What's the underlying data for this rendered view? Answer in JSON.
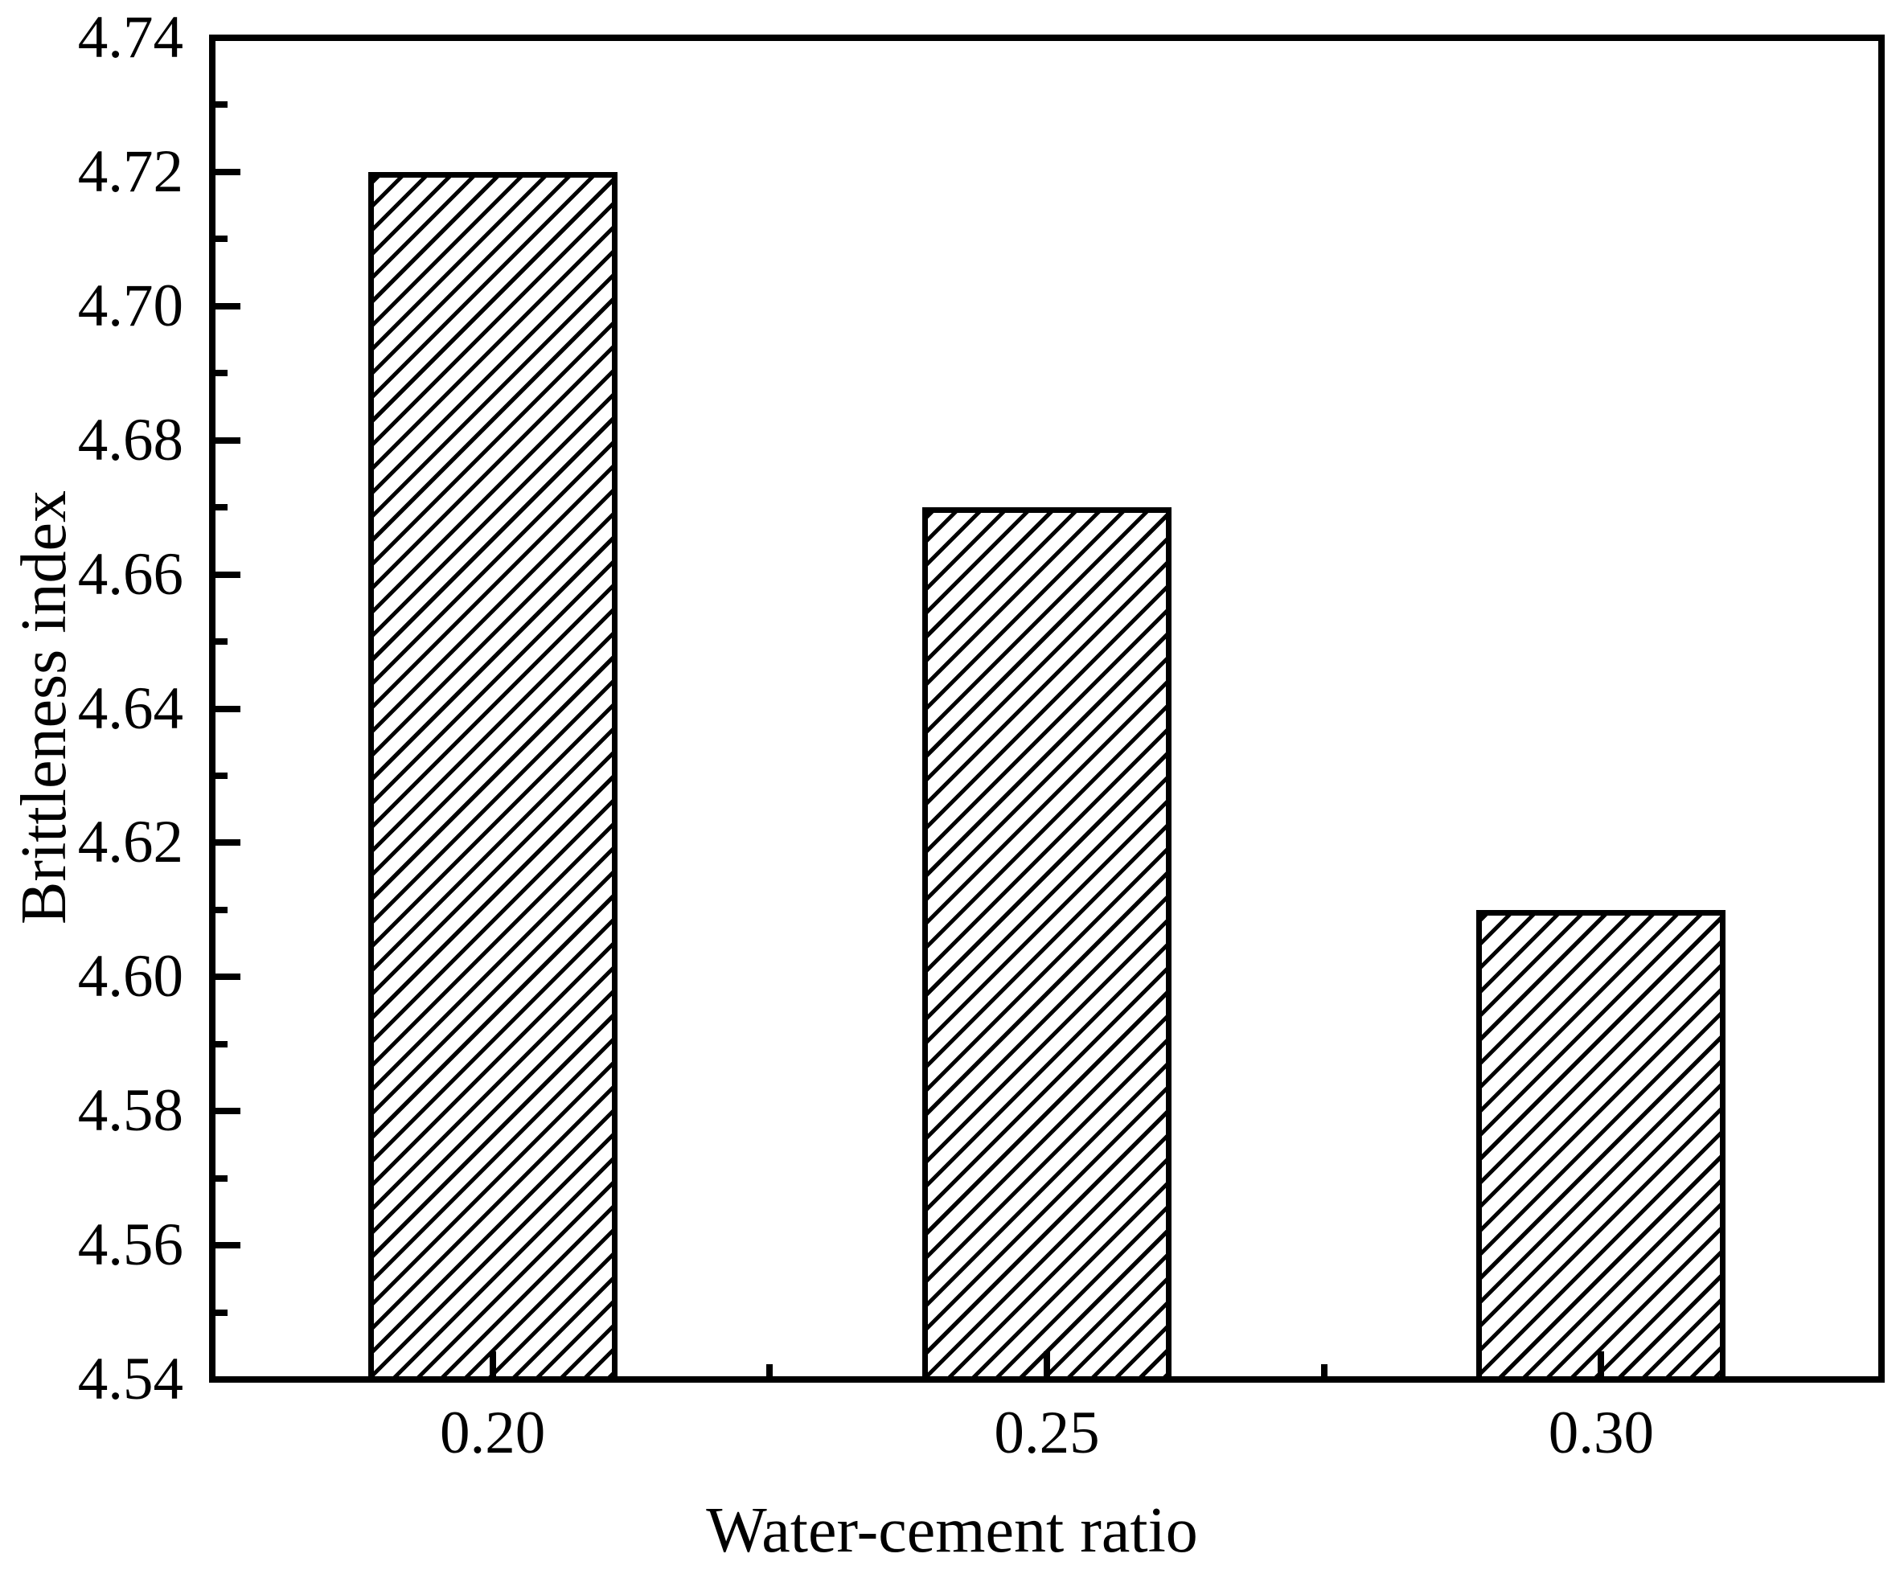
{
  "figure": {
    "background": "#ffffff",
    "ink_color": "#000000"
  },
  "chart_data": {
    "type": "bar",
    "title": "",
    "xlabel": "Water-cement ratio",
    "ylabel": "Brittleness index",
    "categories": [
      "0.20",
      "0.25",
      "0.30"
    ],
    "values": [
      4.72,
      4.67,
      4.61
    ],
    "ylim": [
      4.54,
      4.74
    ],
    "y_major_tick_labels": [
      "4.54",
      "4.56",
      "4.58",
      "4.60",
      "4.62",
      "4.64",
      "4.66",
      "4.68",
      "4.70",
      "4.72",
      "4.74"
    ],
    "y_major_step": 0.02,
    "y_minor_step": 0.01,
    "bar_relative_width": 0.45,
    "bar_fill": "diagonal-hatch",
    "grid": false,
    "legend": null
  }
}
